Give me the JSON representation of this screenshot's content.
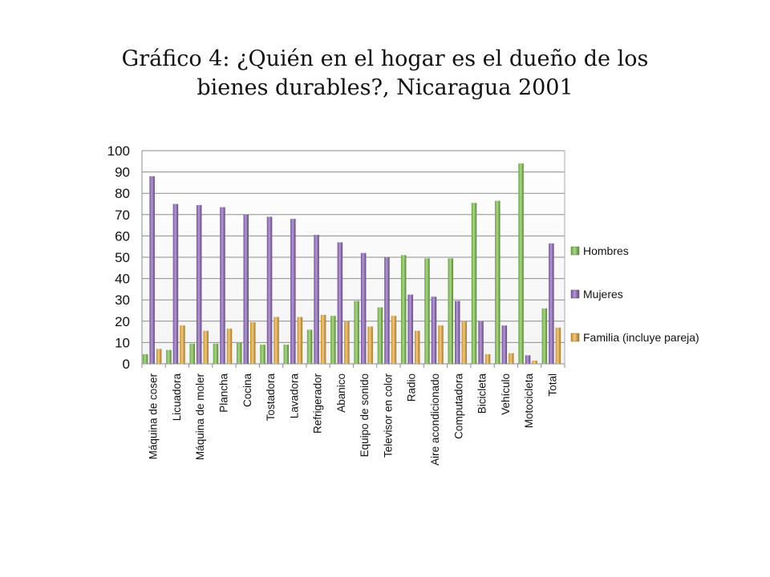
{
  "slide": {
    "title_line1": "Gráfico 4: ¿Quién en el hogar es el dueño de los",
    "title_line2": "bienes durables?, Nicaragua 2001"
  },
  "chart_data": {
    "type": "bar",
    "title": "Gráfico 4: ¿Quién en el hogar es el dueño de los bienes durables?, Nicaragua 2001",
    "xlabel": "",
    "ylabel": "",
    "ylim": [
      0,
      100
    ],
    "yticks": [
      0,
      10,
      20,
      30,
      40,
      50,
      60,
      70,
      80,
      90,
      100
    ],
    "grid": true,
    "legend_position": "right",
    "categories": [
      "Máquina de coser",
      "Licuadora",
      "Máquina de moler",
      "Plancha",
      "Cocina",
      "Tostadora",
      "Lavadora",
      "Refrigerador",
      "Abanico",
      "Equipo de sonido",
      "Televisor en color",
      "Radio",
      "Aire acondicionado",
      "Computadora",
      "Bicicleta",
      "Vehículo",
      "Motocicleta",
      "Total"
    ],
    "series": [
      {
        "name": "Hombres",
        "color": "#7cc04b",
        "values": [
          4.5,
          6.5,
          9.5,
          9.5,
          10,
          9,
          9,
          16,
          22.5,
          29.5,
          26.5,
          51,
          49.5,
          49.5,
          75.5,
          76.5,
          94,
          26
        ]
      },
      {
        "name": "Mujeres",
        "color": "#8a62b8",
        "values": [
          88,
          75,
          74.5,
          73.5,
          70,
          69,
          68,
          60.5,
          57,
          52,
          50,
          32.5,
          31.5,
          29.5,
          20,
          18,
          4,
          56.5
        ]
      },
      {
        "name": "Familia (incluye pareja)",
        "color": "#e9a93a",
        "values": [
          7,
          18,
          15.5,
          16.5,
          19.5,
          22,
          22,
          23,
          20,
          17.5,
          22.5,
          15.5,
          18,
          20,
          4.5,
          5,
          1.5,
          17
        ]
      }
    ]
  }
}
